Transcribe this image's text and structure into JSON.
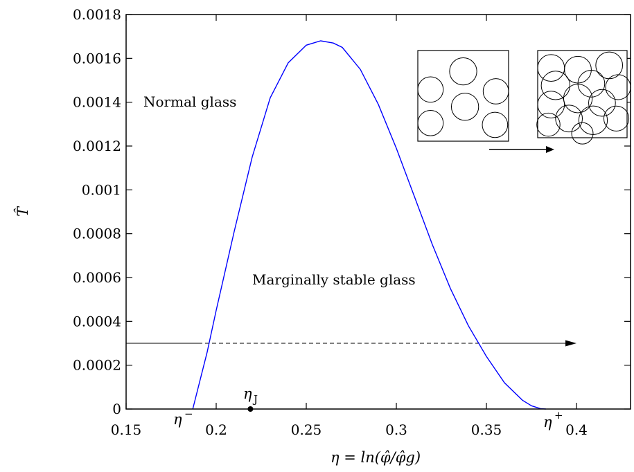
{
  "chart_data": {
    "type": "line",
    "xlabel": "η = ln(φ̂/φ̂g)",
    "ylabel": "T̂",
    "xlim": [
      0.15,
      0.43
    ],
    "ylim": [
      0,
      0.0018
    ],
    "x_ticks": [
      "0.15",
      "0.2",
      "0.25",
      "0.3",
      "0.35",
      "0.4"
    ],
    "x_tick_values": [
      0.15,
      0.2,
      0.25,
      0.3,
      0.35,
      0.4
    ],
    "y_ticks": [
      "0",
      "0.0002",
      "0.0004",
      "0.0006",
      "0.0008",
      "0.001",
      "0.0012",
      "0.0014",
      "0.0016",
      "0.0018"
    ],
    "y_tick_values": [
      0,
      0.0002,
      0.0004,
      0.0006,
      0.0008,
      0.001,
      0.0012,
      0.0014,
      0.0016,
      0.0018
    ],
    "grid": false,
    "series": [
      {
        "color": "#0000ff",
        "x": [
          0.187,
          0.195,
          0.2,
          0.21,
          0.22,
          0.23,
          0.24,
          0.25,
          0.258,
          0.265,
          0.27,
          0.28,
          0.29,
          0.3,
          0.31,
          0.32,
          0.33,
          0.34,
          0.35,
          0.36,
          0.37,
          0.375,
          0.38,
          0.383
        ],
        "y": [
          0,
          0.00026,
          0.00045,
          0.00081,
          0.00115,
          0.00142,
          0.00158,
          0.00166,
          0.00168,
          0.00167,
          0.00165,
          0.00155,
          0.00139,
          0.00119,
          0.00097,
          0.00075,
          0.00055,
          0.00038,
          0.00024,
          0.00012,
          4e-05,
          1.5e-05,
          2e-06,
          0
        ]
      }
    ],
    "reference_line": {
      "y": 0.0003,
      "x_start": 0.15,
      "x_end": 0.4,
      "dashed_between": [
        0.19,
        0.35
      ]
    },
    "points": [
      {
        "label": "ηJ",
        "x": 0.219,
        "y": 0
      }
    ],
    "annotations": {
      "normal_glass": "Normal glass",
      "marginal_glass": "Marginally stable glass",
      "eta_minus": "η",
      "eta_minus_sup": "−",
      "eta_plus": "η",
      "eta_plus_sup": "+",
      "eta_j": "η",
      "eta_j_sub": "J"
    },
    "insets": [
      {
        "name": "sparse-packing",
        "circles": [
          [
            0.14,
            0.43,
            0.14
          ],
          [
            0.5,
            0.23,
            0.15
          ],
          [
            0.86,
            0.45,
            0.14
          ],
          [
            0.52,
            0.62,
            0.15
          ],
          [
            0.14,
            0.8,
            0.14
          ],
          [
            0.85,
            0.82,
            0.14
          ]
        ]
      },
      {
        "name": "dense-packing",
        "circles": [
          [
            0.15,
            0.2,
            0.15
          ],
          [
            0.45,
            0.22,
            0.15
          ],
          [
            0.8,
            0.17,
            0.15
          ],
          [
            0.2,
            0.4,
            0.16
          ],
          [
            0.6,
            0.38,
            0.15
          ],
          [
            0.9,
            0.42,
            0.14
          ],
          [
            0.15,
            0.62,
            0.15
          ],
          [
            0.45,
            0.55,
            0.16
          ],
          [
            0.72,
            0.6,
            0.15
          ],
          [
            0.35,
            0.78,
            0.15
          ],
          [
            0.62,
            0.8,
            0.16
          ],
          [
            0.88,
            0.78,
            0.14
          ],
          [
            0.12,
            0.85,
            0.13
          ],
          [
            0.5,
            0.95,
            0.12
          ]
        ]
      }
    ]
  }
}
